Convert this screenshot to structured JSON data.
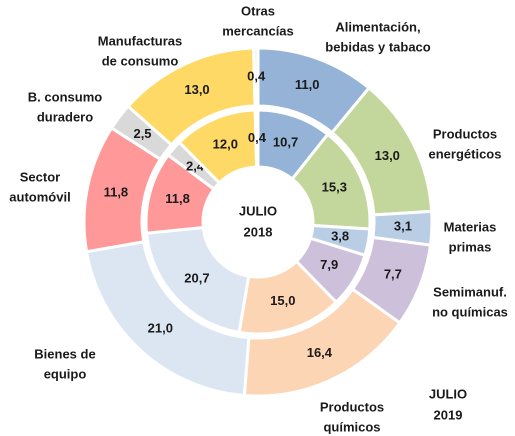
{
  "chart_data": {
    "type": "donut",
    "categories": [
      [
        "Alimentación,",
        "bebidas y tabaco"
      ],
      [
        "Productos",
        "energéticos"
      ],
      [
        "Materias",
        "primas"
      ],
      [
        "Semimanuf.",
        "no químicas"
      ],
      [
        "Productos",
        "químicos"
      ],
      [
        "Bienes de",
        "equipo"
      ],
      [
        "Sector",
        "automóvil"
      ],
      [
        "B. consumo",
        "duradero"
      ],
      [
        "Manufacturas",
        "de consumo"
      ],
      [
        "Otras",
        "mercancías"
      ]
    ],
    "colors": [
      "#95b3d7",
      "#c3d69b",
      "#b9cde5",
      "#ccc0da",
      "#fcd5b5",
      "#dce6f2",
      "#ff9999",
      "#d9d9d9",
      "#ffd966",
      "#f2f2f2"
    ],
    "series": [
      {
        "name": [
          "JULIO",
          "2018"
        ],
        "ring": "inner",
        "values": [
          10.7,
          15.3,
          3.8,
          7.9,
          15.0,
          20.7,
          11.8,
          2.4,
          12.0,
          0.4
        ],
        "value_labels": [
          "10,7",
          "15,3",
          "3,8",
          "7,9",
          "15,0",
          "20,7",
          "11,8",
          "2,4",
          "12,0",
          "0,4"
        ]
      },
      {
        "name": [
          "JULIO",
          "2019"
        ],
        "ring": "outer",
        "values": [
          11.0,
          13.0,
          3.1,
          7.7,
          16.4,
          21.0,
          11.8,
          2.5,
          13.0,
          0.4
        ],
        "value_labels": [
          "11,0",
          "13,0",
          "3,1",
          "7,7",
          "16,4",
          "21,0",
          "11,8",
          "2,5",
          "13,0",
          "0,4"
        ]
      }
    ]
  }
}
